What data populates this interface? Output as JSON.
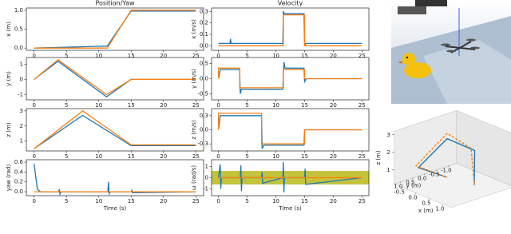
{
  "chart_data": [
    {
      "type": "line",
      "title": "Position/Yaw",
      "ylabel": "x (m)",
      "xlim": [
        -1.2,
        26.2
      ],
      "xticks": [
        0,
        5,
        10,
        15,
        20,
        25
      ],
      "ylim": [
        -0.06,
        1.06
      ],
      "yticks": [
        {
          "value": 0,
          "label": "0.0"
        },
        {
          "value": 0.5,
          "label": "0.5"
        },
        {
          "value": 1,
          "label": "1.0"
        }
      ],
      "series": [
        {
          "color": "#1f77b4",
          "x": [
            0,
            11,
            11.3,
            15,
            25
          ],
          "values": [
            0,
            0.05,
            0.05,
            0.98,
            0.98
          ]
        },
        {
          "color": "#ff7f0e",
          "x": [
            0,
            11.3,
            15,
            25
          ],
          "values": [
            0,
            0,
            1.0,
            1.0
          ]
        }
      ]
    },
    {
      "type": "line",
      "ylabel": "y (m)",
      "xlim": [
        -1.2,
        26.2
      ],
      "xticks": [
        0,
        5,
        10,
        15,
        20,
        25
      ],
      "ylim": [
        -1.35,
        1.45
      ],
      "yticks": [
        -1,
        0,
        1
      ],
      "series": [
        {
          "color": "#1f77b4",
          "x": [
            0,
            3.7,
            11.2,
            15,
            25
          ],
          "values": [
            0,
            1.2,
            -1.15,
            0,
            0
          ]
        },
        {
          "color": "#ff7f0e",
          "x": [
            0,
            3.7,
            11.2,
            15,
            25
          ],
          "values": [
            0,
            1.3,
            -1.0,
            0,
            0
          ]
        }
      ]
    },
    {
      "type": "line",
      "ylabel": "z (m)",
      "xlim": [
        -1.2,
        26.2
      ],
      "xticks": [
        0,
        5,
        10,
        15,
        20,
        25
      ],
      "ylim": [
        0.35,
        3.15
      ],
      "yticks": [
        1,
        2,
        3
      ],
      "series": [
        {
          "color": "#1f77b4",
          "x": [
            0,
            7.5,
            15,
            25
          ],
          "values": [
            0.5,
            2.7,
            0.7,
            0.7
          ]
        },
        {
          "color": "#ff7f0e",
          "x": [
            0,
            7.5,
            15,
            25
          ],
          "values": [
            0.5,
            3.0,
            0.75,
            0.75
          ]
        }
      ]
    },
    {
      "type": "line",
      "ylabel": "yaw (rad)",
      "xlabel": "Time (s)",
      "xlim": [
        -1.2,
        26.2
      ],
      "xticks": [
        0,
        5,
        10,
        15,
        20,
        25
      ],
      "ylim": [
        -0.08,
        0.65
      ],
      "yticks": [
        {
          "value": 0,
          "label": "0.0"
        },
        {
          "value": 0.2,
          "label": "0.2"
        },
        {
          "value": 0.4,
          "label": "0.4"
        },
        {
          "value": 0.6,
          "label": "0.6"
        }
      ],
      "series": [
        {
          "color": "#1f77b4",
          "x": [
            0,
            0.5,
            1,
            3.8,
            3.9,
            4,
            4.2,
            11.4,
            11.5,
            11.6,
            11.8,
            15,
            15.1,
            15.2,
            25
          ],
          "values": [
            0.57,
            0.05,
            0,
            0,
            0.05,
            -0.05,
            0,
            0,
            0.2,
            -0.04,
            0,
            0,
            0.03,
            -0.02,
            0
          ]
        },
        {
          "color": "#ff7f0e",
          "x": [
            0,
            25
          ],
          "values": [
            0,
            0
          ]
        }
      ]
    },
    {
      "type": "line",
      "title": "Velocity",
      "ylabel": "x (m/s)",
      "xlim": [
        -1.2,
        26.2
      ],
      "xticks": [
        0,
        5,
        10,
        15,
        20,
        25
      ],
      "ylim": [
        -0.04,
        0.33
      ],
      "yticks": [
        {
          "value": 0,
          "label": "0.0"
        },
        {
          "value": 0.1,
          "label": "0.1"
        },
        {
          "value": 0.2,
          "label": "0.2"
        },
        {
          "value": 0.3,
          "label": "0.3"
        }
      ],
      "series": [
        {
          "color": "#1f77b4",
          "x": [
            0,
            2,
            2.1,
            2.2,
            11.2,
            11.3,
            11.5,
            14.9,
            15,
            15.2,
            25
          ],
          "values": [
            0.02,
            0.02,
            0.06,
            0.02,
            0.02,
            0.3,
            0.28,
            0.28,
            0.0,
            0.02,
            0.02
          ]
        },
        {
          "color": "#ff7f0e",
          "x": [
            0,
            11.3,
            11.3,
            15,
            15,
            25
          ],
          "values": [
            0,
            0,
            0.27,
            0.27,
            0,
            0
          ]
        }
      ]
    },
    {
      "type": "line",
      "ylabel": "y (m/s)",
      "xlim": [
        -1.2,
        26.2
      ],
      "xticks": [
        0,
        5,
        10,
        15,
        20,
        25
      ],
      "ylim": [
        -0.7,
        0.7
      ],
      "yticks": [
        {
          "value": -0.5,
          "label": "-0.5"
        },
        {
          "value": 0,
          "label": "0.0"
        },
        {
          "value": 0.5,
          "label": "0.5"
        }
      ],
      "series": [
        {
          "color": "#1f77b4",
          "x": [
            0,
            0.3,
            3.7,
            3.8,
            4,
            11.2,
            11.4,
            11.6,
            14.9,
            15,
            15.3,
            25
          ],
          "values": [
            0,
            0.3,
            0.3,
            -0.5,
            -0.35,
            -0.35,
            0.55,
            0.35,
            0.35,
            -0.1,
            0,
            0
          ]
        },
        {
          "color": "#ff7f0e",
          "x": [
            0,
            0,
            3.7,
            3.7,
            11.3,
            11.3,
            15,
            15,
            25
          ],
          "values": [
            0,
            0.35,
            0.35,
            -0.3,
            -0.3,
            0.3,
            0.3,
            0,
            0
          ]
        }
      ]
    },
    {
      "type": "line",
      "ylabel": "z (m/s)",
      "xlim": [
        -1.2,
        26.2
      ],
      "xticks": [
        0,
        5,
        10,
        15,
        20,
        25
      ],
      "ylim": [
        -0.45,
        0.45
      ],
      "yticks": [
        {
          "value": -0.3,
          "label": "-0.3"
        },
        {
          "value": 0,
          "label": "0.0"
        },
        {
          "value": 0.3,
          "label": "0.3"
        }
      ],
      "series": [
        {
          "color": "#1f77b4",
          "x": [
            0,
            0.3,
            7.5,
            7.6,
            7.9,
            14.9,
            15,
            15.3,
            25
          ],
          "values": [
            0,
            0.3,
            0.3,
            -0.4,
            -0.33,
            -0.33,
            0,
            0,
            0
          ]
        },
        {
          "color": "#ff7f0e",
          "x": [
            0,
            0,
            7.5,
            7.5,
            15,
            15,
            25
          ],
          "values": [
            0,
            0.35,
            0.35,
            -0.3,
            -0.3,
            0,
            0
          ]
        }
      ]
    },
    {
      "type": "line",
      "ylabel": "ω (rad/s)",
      "xlabel": "Time (s)",
      "xlim": [
        -1.2,
        26.2
      ],
      "xticks": [
        0,
        5,
        10,
        15,
        20,
        25
      ],
      "ylim": [
        -1.6,
        1.6
      ],
      "yticks": [
        -1,
        0,
        1
      ],
      "band": {
        "range": [
          -0.6,
          0.6
        ],
        "color": "#b8b81a"
      },
      "series": [
        {
          "color": "#1f77b4",
          "x": [
            0,
            0.3,
            0.4,
            0.5,
            3.8,
            3.9,
            4,
            4.1,
            7.5,
            7.6,
            7.7,
            11.2,
            11.3,
            11.4,
            11.5,
            15,
            15.1,
            15.2,
            25
          ],
          "values": [
            0,
            1.2,
            -1,
            0,
            0,
            1.1,
            -1.2,
            0,
            0,
            0.5,
            -0.5,
            0,
            1.4,
            -1.3,
            0,
            0,
            0.8,
            -0.6,
            0
          ]
        },
        {
          "color": "#ff7f0e",
          "x": [
            0,
            25
          ],
          "values": [
            0,
            0
          ]
        }
      ]
    },
    {
      "type": "line3d",
      "xlabel": "x (m)",
      "ylabel": "y (m)",
      "zlabel": "z (m)",
      "xticks": [
        {
          "value": -0.5,
          "label": "-0.5"
        },
        {
          "value": 0,
          "label": "0.0"
        },
        {
          "value": 0.5,
          "label": "0.5"
        },
        {
          "value": 1,
          "label": "1.0"
        }
      ],
      "yticks": [
        {
          "value": -1,
          "label": "-1.0"
        },
        {
          "value": -0.5,
          "label": "-0.5"
        },
        {
          "value": 0,
          "label": "0.0"
        },
        {
          "value": 0.5,
          "label": "0.5"
        },
        {
          "value": 1,
          "label": "1.0"
        }
      ],
      "zticks": [
        1,
        2,
        3
      ],
      "series": [
        {
          "color": "#1f77b4",
          "x": [
            0,
            0,
            0,
            0,
            1,
            1
          ],
          "y": [
            0,
            1.2,
            0,
            -1.15,
            0,
            0
          ],
          "values": [
            0.5,
            1.6,
            2.7,
            1.5,
            0.7,
            0.7
          ]
        },
        {
          "color": "#ff7f0e",
          "x": [
            0,
            0,
            0,
            0,
            1,
            1
          ],
          "y": [
            0,
            1.3,
            0,
            -1.0,
            0,
            0
          ],
          "values": [
            0.5,
            1.75,
            3.0,
            1.7,
            0.75,
            0.75
          ]
        }
      ]
    }
  ]
}
